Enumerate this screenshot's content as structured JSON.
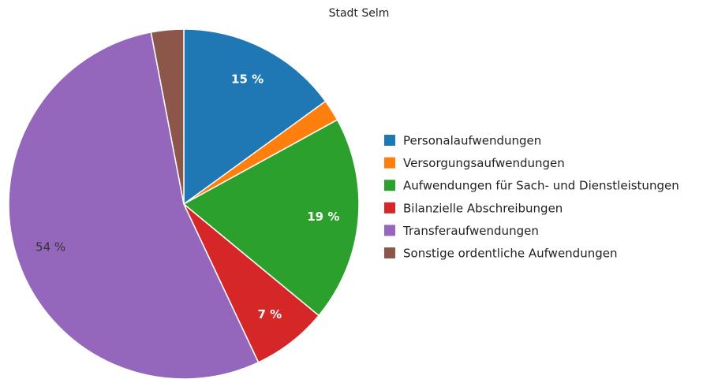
{
  "chart_data": {
    "type": "pie",
    "title": "Stadt Selm",
    "categories": [
      "Personalaufwendungen",
      "Versorgungsaufwendungen",
      "Aufwendungen für Sach- und Dienstleistungen",
      "Bilanzielle Abschreibungen",
      "Transferaufwendungen",
      "Sonstige ordentliche Aufwendungen"
    ],
    "values": [
      15,
      2,
      19,
      7,
      54,
      3
    ],
    "value_labels": [
      "15 %",
      null,
      "19 %",
      "7 %",
      "54 %",
      null
    ],
    "colors": [
      "#1f77b4",
      "#ff7f0e",
      "#2ca02c",
      "#d62728",
      "#9467bd",
      "#8c564b"
    ],
    "legend": "right"
  }
}
